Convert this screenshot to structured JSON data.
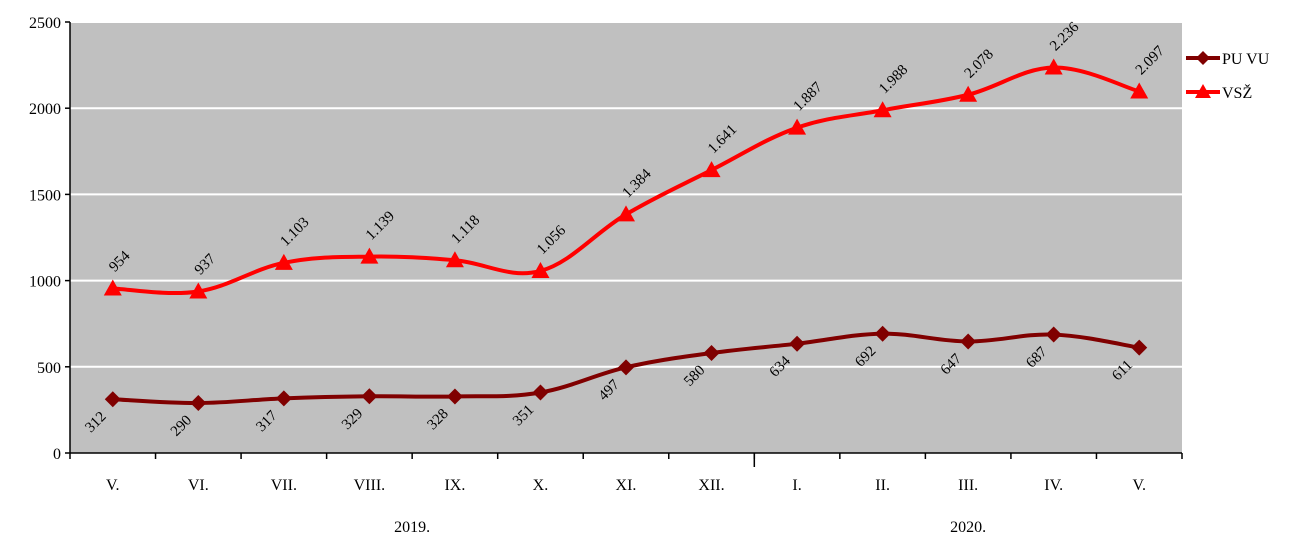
{
  "chart_data": {
    "type": "line",
    "categories": [
      "V.",
      "VI.",
      "VII.",
      "VIII.",
      "IX.",
      "X.",
      "XI.",
      "XII.",
      "I.",
      "II.",
      "III.",
      "IV.",
      "V."
    ],
    "year_groups": [
      {
        "label": "2019.",
        "from": 0,
        "to": 7
      },
      {
        "label": "2020.",
        "from": 8,
        "to": 12
      }
    ],
    "series": [
      {
        "name": "PU VU",
        "color": "#800000",
        "marker": "diamond",
        "values": [
          312,
          290,
          317,
          329,
          328,
          351,
          497,
          580,
          634,
          692,
          647,
          687,
          611
        ],
        "labels": [
          "312",
          "290",
          "317",
          "329",
          "328",
          "351",
          "497",
          "580",
          "634",
          "692",
          "647",
          "687",
          "611"
        ]
      },
      {
        "name": "VSŽ",
        "color": "#ff0000",
        "marker": "triangle",
        "values": [
          954,
          937,
          1103,
          1139,
          1118,
          1056,
          1384,
          1641,
          1887,
          1988,
          2078,
          2236,
          2097
        ],
        "labels": [
          "954",
          "937",
          "1.103",
          "1.139",
          "1.118",
          "1.056",
          "1.384",
          "1.641",
          "1.887",
          "1.988",
          "2.078",
          "2.236",
          "2.097"
        ]
      }
    ],
    "yticks": [
      "0",
      "500",
      "1000",
      "1500",
      "2000",
      "2500"
    ],
    "ylim": [
      0,
      2500
    ],
    "plot_background": "#c0c0c0",
    "gridlines": true,
    "legend_position": "right"
  }
}
